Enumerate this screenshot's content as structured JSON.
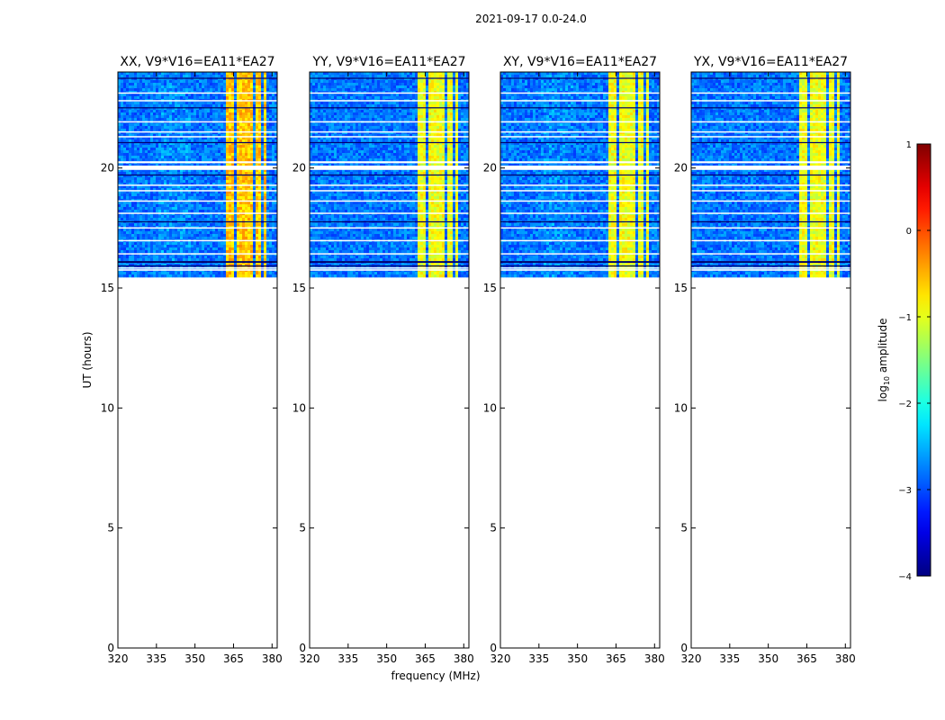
{
  "figure_title": "2021-09-17 0.0-24.0",
  "chart_data": {
    "type": "heatmap",
    "suptitle": "2021-09-17 0.0-24.0",
    "xlabel": "frequency (MHz)",
    "ylabel": "UT (hours)",
    "xlim": [
      320,
      382
    ],
    "ylim": [
      0,
      24
    ],
    "x_ticks": [
      "320",
      "335",
      "350",
      "365",
      "380"
    ],
    "x_tick_values": [
      320,
      335,
      350,
      365,
      380
    ],
    "y_ticks": [
      "0",
      "5",
      "10",
      "15",
      "20"
    ],
    "y_tick_values": [
      0,
      5,
      10,
      15,
      20
    ],
    "data_time_range_hours": [
      15.5,
      24
    ],
    "high_amplitude_band_mhz": [
      360,
      376
    ],
    "panels": [
      {
        "title": "XX, V9*V16=EA11*EA27"
      },
      {
        "title": "YY, V9*V16=EA11*EA27"
      },
      {
        "title": "XY, V9*V16=EA11*EA27"
      },
      {
        "title": "YX, V9*V16=EA11*EA27"
      }
    ],
    "colorbar": {
      "label": "log10 amplitude",
      "label_main": "log",
      "label_sub": "10",
      "label_rest": " amplitude",
      "range": [
        -4,
        1
      ],
      "ticks": [
        "1",
        "0",
        "−1",
        "−2",
        "−3",
        "−4"
      ],
      "tick_values": [
        1,
        0,
        -1,
        -2,
        -3,
        -4
      ],
      "colormap": "jet"
    }
  }
}
